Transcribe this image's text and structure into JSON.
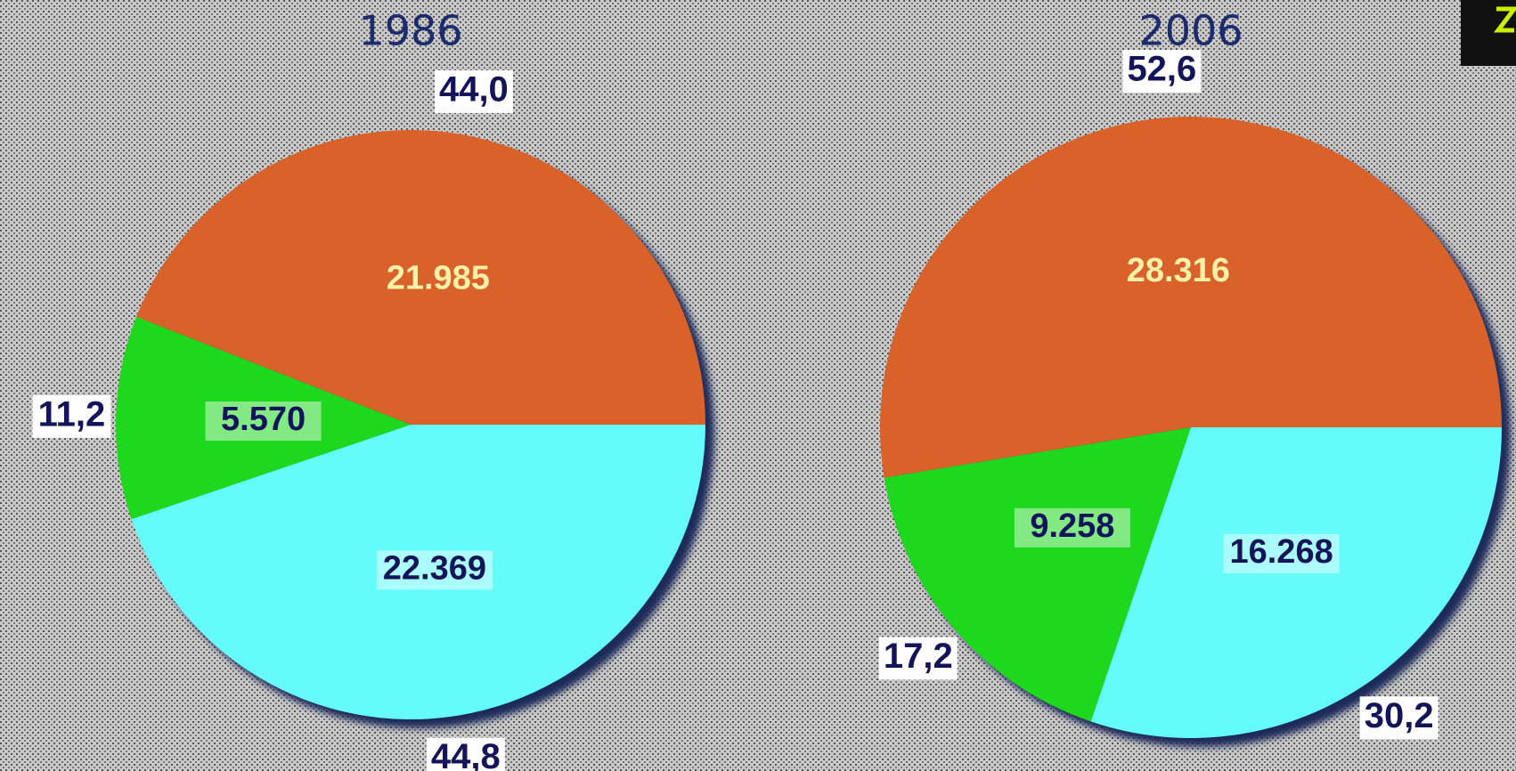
{
  "chart_data": [
    {
      "type": "pie",
      "title": "1986",
      "values": [
        21985,
        5570,
        22369
      ],
      "value_labels": [
        "21.985",
        "5.570",
        "22.369"
      ],
      "percent_labels": [
        "44,0",
        "11,2",
        "44,8"
      ],
      "colors": [
        "#d9622b",
        "#1ed81e",
        "#66fbfb"
      ],
      "label_colors": [
        "#fff0a8",
        "#14145a",
        "#14145a"
      ]
    },
    {
      "type": "pie",
      "title": "2006",
      "values": [
        28316,
        9258,
        16268
      ],
      "value_labels": [
        "28.316",
        "9.258",
        "16.268"
      ],
      "percent_labels": [
        "52,6",
        "17,2",
        "30,2"
      ],
      "colors": [
        "#d9622b",
        "#1ed81e",
        "#66fbfb"
      ],
      "label_colors": [
        "#fff0a8",
        "#14145a",
        "#14145a"
      ]
    }
  ]
}
